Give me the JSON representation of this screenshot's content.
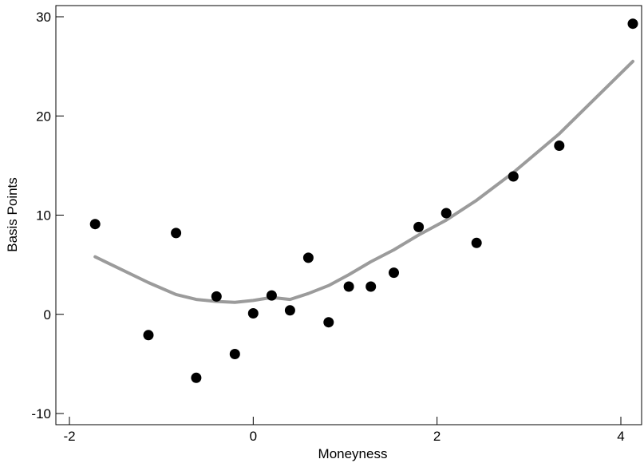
{
  "chart_data": {
    "type": "scatter",
    "title": "",
    "xlabel": "Moneyness",
    "ylabel": "Basis Points",
    "xlim": [
      -2.05,
      4.2
    ],
    "ylim": [
      -10.5,
      30.5
    ],
    "x_ticks": [
      -2,
      0,
      2,
      4
    ],
    "x_tick_labels": [
      "-2",
      "0",
      "2",
      "4"
    ],
    "y_ticks": [
      -10,
      0,
      10,
      20,
      30
    ],
    "y_tick_labels": [
      "-10",
      "0",
      "10",
      "20",
      "30"
    ],
    "grid": false,
    "legend": "none",
    "colors": {
      "points": "#000000",
      "fit_line": "#9b9b9b",
      "axes": "#000000"
    },
    "series": [
      {
        "kind": "scatter",
        "points": [
          {
            "x": -1.72,
            "y": 9.1
          },
          {
            "x": -1.14,
            "y": -2.1
          },
          {
            "x": -0.84,
            "y": 8.2
          },
          {
            "x": -0.62,
            "y": -6.4
          },
          {
            "x": -0.4,
            "y": 1.8
          },
          {
            "x": -0.2,
            "y": -4.0
          },
          {
            "x": 0.0,
            "y": 0.1
          },
          {
            "x": 0.2,
            "y": 1.9
          },
          {
            "x": 0.4,
            "y": 0.4
          },
          {
            "x": 0.6,
            "y": 5.7
          },
          {
            "x": 0.82,
            "y": -0.8
          },
          {
            "x": 1.04,
            "y": 2.8
          },
          {
            "x": 1.28,
            "y": 2.8
          },
          {
            "x": 1.53,
            "y": 4.2
          },
          {
            "x": 1.8,
            "y": 8.8
          },
          {
            "x": 2.1,
            "y": 10.2
          },
          {
            "x": 2.43,
            "y": 7.2
          },
          {
            "x": 2.83,
            "y": 13.9
          },
          {
            "x": 3.33,
            "y": 17.0
          },
          {
            "x": 4.13,
            "y": 29.3
          }
        ]
      },
      {
        "kind": "line",
        "points": [
          {
            "x": -1.72,
            "y": 5.8
          },
          {
            "x": -1.14,
            "y": 3.2
          },
          {
            "x": -0.84,
            "y": 2.0
          },
          {
            "x": -0.62,
            "y": 1.5
          },
          {
            "x": -0.4,
            "y": 1.3
          },
          {
            "x": -0.2,
            "y": 1.2
          },
          {
            "x": 0.0,
            "y": 1.4
          },
          {
            "x": 0.2,
            "y": 1.7
          },
          {
            "x": 0.4,
            "y": 1.5
          },
          {
            "x": 0.6,
            "y": 2.1
          },
          {
            "x": 0.82,
            "y": 2.9
          },
          {
            "x": 1.04,
            "y": 4.0
          },
          {
            "x": 1.28,
            "y": 5.3
          },
          {
            "x": 1.53,
            "y": 6.5
          },
          {
            "x": 1.8,
            "y": 8.0
          },
          {
            "x": 2.1,
            "y": 9.5
          },
          {
            "x": 2.43,
            "y": 11.5
          },
          {
            "x": 2.83,
            "y": 14.3
          },
          {
            "x": 3.33,
            "y": 18.2
          },
          {
            "x": 4.13,
            "y": 25.5
          }
        ]
      }
    ]
  }
}
